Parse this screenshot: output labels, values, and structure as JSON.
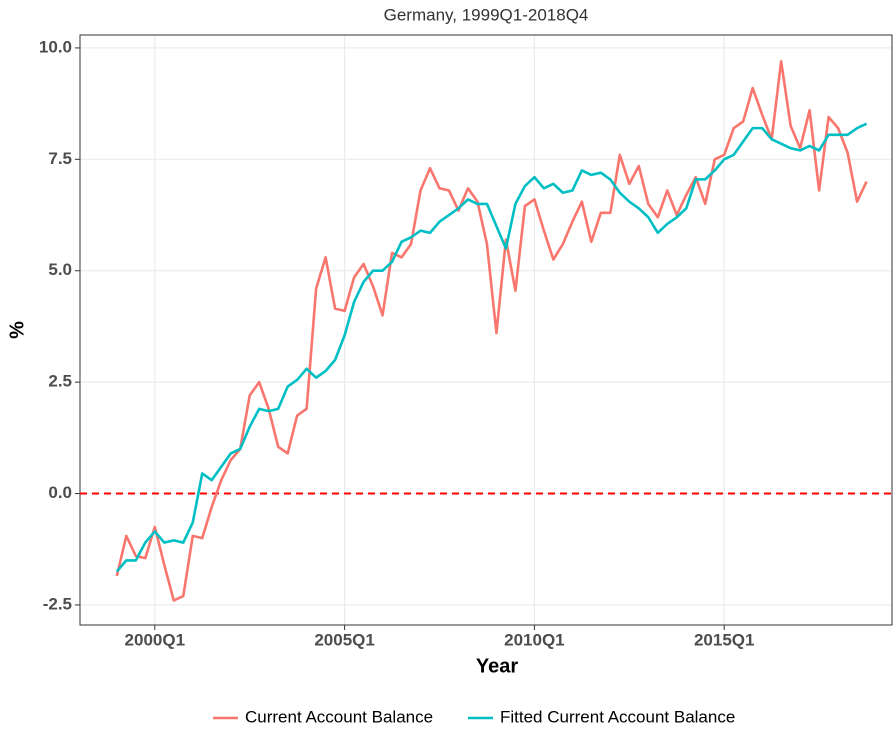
{
  "chart_data": {
    "type": "line",
    "title": "Germany, 1999Q1-2018Q4",
    "x_label": "Year",
    "y_label": "%",
    "x": [
      1999,
      1999.25,
      1999.5,
      1999.75,
      2000,
      2000.25,
      2000.5,
      2000.75,
      2001,
      2001.25,
      2001.5,
      2001.75,
      2002,
      2002.25,
      2002.5,
      2002.75,
      2003,
      2003.25,
      2003.5,
      2003.75,
      2004,
      2004.25,
      2004.5,
      2004.75,
      2005,
      2005.25,
      2005.5,
      2005.75,
      2006,
      2006.25,
      2006.5,
      2006.75,
      2007,
      2007.25,
      2007.5,
      2007.75,
      2008,
      2008.25,
      2008.5,
      2008.75,
      2009,
      2009.25,
      2009.5,
      2009.75,
      2010,
      2010.25,
      2010.5,
      2010.75,
      2011,
      2011.25,
      2011.5,
      2011.75,
      2012,
      2012.25,
      2012.5,
      2012.75,
      2013,
      2013.25,
      2013.5,
      2013.75,
      2014,
      2014.25,
      2014.5,
      2014.75,
      2015,
      2015.25,
      2015.5,
      2015.75,
      2016,
      2016.25,
      2016.5,
      2016.75,
      2017,
      2017.25,
      2017.5,
      2017.75,
      2018,
      2018.25,
      2018.5,
      2018.75
    ],
    "series": [
      {
        "name": "Current Account Balance",
        "color": "#F8766D",
        "values": [
          -1.85,
          -0.95,
          -1.4,
          -1.45,
          -0.75,
          -1.6,
          -2.4,
          -2.3,
          -0.95,
          -1.0,
          -0.3,
          0.3,
          0.75,
          1.0,
          2.2,
          2.5,
          1.9,
          1.05,
          0.9,
          1.75,
          1.9,
          4.6,
          5.3,
          4.15,
          4.1,
          4.85,
          5.15,
          4.65,
          4.0,
          5.4,
          5.3,
          5.6,
          6.8,
          7.3,
          6.85,
          6.8,
          6.35,
          6.85,
          6.55,
          5.6,
          3.6,
          5.7,
          4.55,
          6.45,
          6.6,
          5.9,
          5.25,
          5.6,
          6.1,
          6.55,
          5.65,
          6.3,
          6.3,
          7.6,
          6.95,
          7.35,
          6.5,
          6.2,
          6.8,
          6.25,
          6.7,
          7.1,
          6.5,
          7.5,
          7.6,
          8.2,
          8.35,
          9.1,
          8.5,
          7.95,
          9.7,
          8.25,
          7.75,
          8.6,
          6.8,
          8.45,
          8.2,
          7.65,
          6.55,
          7.0
        ]
      },
      {
        "name": "Fitted Current Account Balance",
        "color": "#00BFC4",
        "values": [
          -1.75,
          -1.5,
          -1.5,
          -1.1,
          -0.85,
          -1.1,
          -1.05,
          -1.1,
          -0.65,
          0.45,
          0.3,
          0.6,
          0.9,
          1.0,
          1.5,
          1.9,
          1.85,
          1.9,
          2.4,
          2.55,
          2.8,
          2.6,
          2.75,
          3.0,
          3.55,
          4.3,
          4.75,
          5.0,
          5.0,
          5.2,
          5.65,
          5.75,
          5.9,
          5.85,
          6.1,
          6.25,
          6.4,
          6.6,
          6.5,
          6.5,
          6.0,
          5.5,
          6.5,
          6.9,
          7.1,
          6.85,
          6.95,
          6.75,
          6.8,
          7.25,
          7.15,
          7.2,
          7.05,
          6.75,
          6.55,
          6.4,
          6.2,
          5.85,
          6.05,
          6.2,
          6.4,
          7.05,
          7.05,
          7.25,
          7.5,
          7.6,
          7.9,
          8.2,
          8.2,
          7.95,
          7.85,
          7.75,
          7.7,
          7.8,
          7.7,
          8.05,
          8.05,
          8.05,
          8.2,
          8.3
        ]
      }
    ],
    "xlim": [
      1998.03,
      2019.42
    ],
    "xticks": [
      {
        "value": 2000,
        "label": "2000Q1"
      },
      {
        "value": 2005,
        "label": "2005Q1"
      },
      {
        "value": 2010,
        "label": "2010Q1"
      },
      {
        "value": 2015,
        "label": "2015Q1"
      }
    ],
    "ylim": [
      -2.95,
      10.29
    ],
    "yticks": [
      -2.5,
      {
        "value": 0,
        "label": "0.0"
      },
      2.5,
      {
        "value": 5,
        "label": "5.0"
      },
      7.5,
      {
        "value": 10,
        "label": "10.0"
      }
    ],
    "reference_line": {
      "value": 0,
      "color": "#FF0000"
    },
    "grid": true,
    "legend": "bottom"
  }
}
